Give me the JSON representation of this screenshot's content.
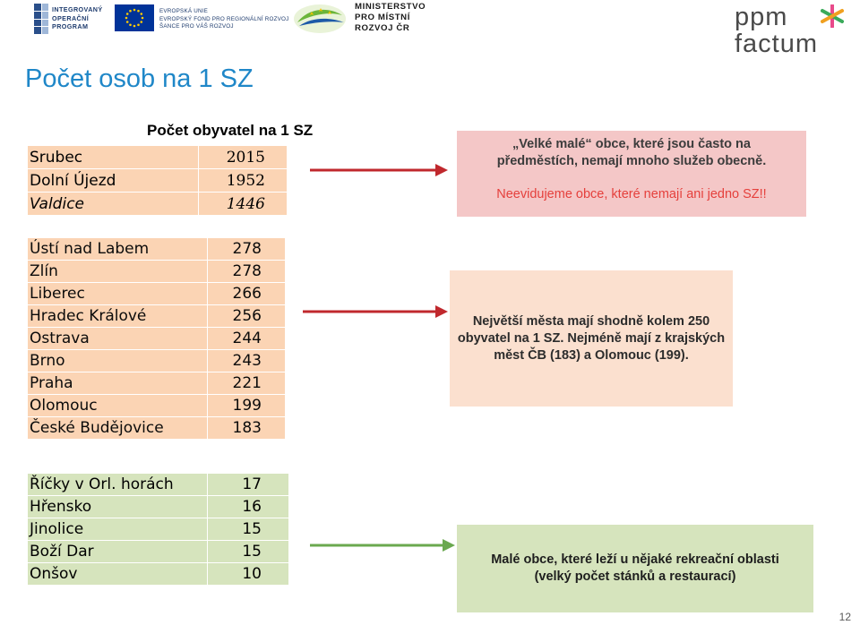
{
  "header": {
    "iop_lines": [
      "INTEGROVANÝ",
      "OPERAČNÍ",
      "PROGRAM"
    ],
    "eu_lines": [
      "EVROPSKÁ UNIE",
      "EVROPSKÝ FOND PRO REGIONÁLNÍ ROZVOJ",
      "ŠANCE PRO VÁŠ ROZVOJ"
    ],
    "mmr_lines": [
      "MINISTERSTVO",
      "PRO MÍSTNÍ",
      "ROZVOJ ČR"
    ],
    "ppm_line1": "ppm",
    "ppm_line2": "factum"
  },
  "title": "Počet osob na 1 SZ",
  "table1": {
    "header": "Počet obyvatel na 1 SZ",
    "rows": [
      {
        "name": "Srubec",
        "value": "2015"
      },
      {
        "name": "Dolní Újezd",
        "value": "1952"
      },
      {
        "name": "Valdice",
        "value": "1446"
      }
    ]
  },
  "table2": {
    "rows": [
      {
        "name": "Ústí nad Labem",
        "value": "278"
      },
      {
        "name": "Zlín",
        "value": "278"
      },
      {
        "name": "Liberec",
        "value": "266"
      },
      {
        "name": "Hradec Králové",
        "value": "256"
      },
      {
        "name": "Ostrava",
        "value": "244"
      },
      {
        "name": "Brno",
        "value": "243"
      },
      {
        "name": "Praha",
        "value": "221"
      },
      {
        "name": "Olomouc",
        "value": "199"
      },
      {
        "name": "České Budějovice",
        "value": "183"
      }
    ]
  },
  "table3": {
    "rows": [
      {
        "name": "Říčky v Orl. horách",
        "value": "17"
      },
      {
        "name": "Hřensko",
        "value": "16"
      },
      {
        "name": "Jinolice",
        "value": "15"
      },
      {
        "name": "Boží Dar",
        "value": "15"
      },
      {
        "name": "Onšov",
        "value": "10"
      }
    ]
  },
  "box1": {
    "line1": "„Velké malé“ obce, které jsou často na",
    "line2": "předměstích, nemají mnoho služeb obecně.",
    "note": "Neevidujeme obce, které nemají ani jedno SZ!!"
  },
  "box2": {
    "text": "Největší města mají shodně kolem 250 obyvatel na 1 SZ. Nejméně mají z krajských měst ČB (183) a Olomouc (199)."
  },
  "box3": {
    "line1": "Malé obce, které leží u nějaké rekreační oblasti",
    "line2": "(velký počet stánků a restaurací)"
  },
  "page_number": "12",
  "colors": {
    "title": "#1f87c8",
    "arrow_red": "#c0282d",
    "arrow_green": "#6aa84f",
    "peach": "#fbd4b4",
    "green": "#d6e4bd",
    "pink": "#f4c7c7",
    "note_red": "#e5403c"
  }
}
